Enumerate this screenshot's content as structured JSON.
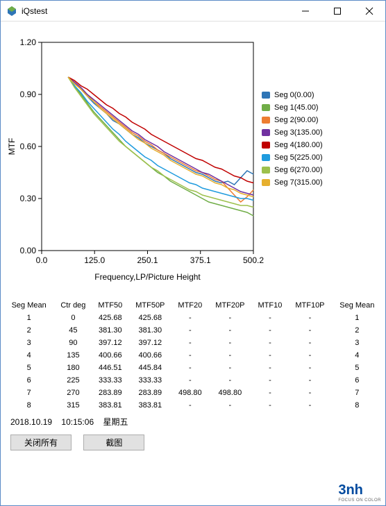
{
  "window": {
    "title": "iQstest"
  },
  "chart": {
    "type": "line",
    "xlabel": "Frequency,LP/Picture Height",
    "ylabel": "MTF",
    "xlim": [
      0,
      500.2
    ],
    "ylim": [
      0,
      1.2
    ],
    "xticks": [
      {
        "v": 0,
        "l": "0.0"
      },
      {
        "v": 125,
        "l": "125.0"
      },
      {
        "v": 250.1,
        "l": "250.1"
      },
      {
        "v": 375.1,
        "l": "375.1"
      },
      {
        "v": 500.2,
        "l": "500.2"
      }
    ],
    "yticks": [
      {
        "v": 0,
        "l": "0.00"
      },
      {
        "v": 0.3,
        "l": "0.30"
      },
      {
        "v": 0.6,
        "l": "0.60"
      },
      {
        "v": 0.9,
        "l": "0.90"
      },
      {
        "v": 1.2,
        "l": "1.20"
      }
    ],
    "plot_bg": "#ffffff",
    "fig_bg": "#ffffff",
    "grid_color": "#d0d0d0",
    "axis_color": "#000000",
    "label_fontsize": 12,
    "tick_fontsize": 12,
    "line_width": 1.5,
    "legend_prefix": "Seg",
    "series": [
      {
        "name": "Seg 0(0.00)",
        "color": "#2e75b6",
        "y": [
          1.0,
          0.97,
          0.93,
          0.89,
          0.85,
          0.82,
          0.79,
          0.75,
          0.73,
          0.7,
          0.67,
          0.65,
          0.62,
          0.6,
          0.58,
          0.56,
          0.53,
          0.51,
          0.49,
          0.47,
          0.45,
          0.44,
          0.42,
          0.4,
          0.39,
          0.4,
          0.38,
          0.42,
          0.46,
          0.44
        ]
      },
      {
        "name": "Seg 1(45.00)",
        "color": "#70ad47",
        "y": [
          1.0,
          0.95,
          0.9,
          0.85,
          0.8,
          0.76,
          0.72,
          0.68,
          0.64,
          0.6,
          0.57,
          0.54,
          0.51,
          0.48,
          0.45,
          0.43,
          0.4,
          0.38,
          0.36,
          0.34,
          0.32,
          0.3,
          0.28,
          0.27,
          0.26,
          0.25,
          0.24,
          0.23,
          0.22,
          0.2
        ]
      },
      {
        "name": "Seg 2(90.00)",
        "color": "#ed7d31",
        "y": [
          1.0,
          0.97,
          0.93,
          0.9,
          0.86,
          0.83,
          0.8,
          0.77,
          0.74,
          0.71,
          0.68,
          0.66,
          0.63,
          0.61,
          0.58,
          0.56,
          0.54,
          0.52,
          0.5,
          0.48,
          0.46,
          0.45,
          0.43,
          0.41,
          0.4,
          0.36,
          0.32,
          0.28,
          0.31,
          0.35
        ]
      },
      {
        "name": "Seg 3(135.00)",
        "color": "#7030a0",
        "y": [
          1.0,
          0.97,
          0.94,
          0.9,
          0.87,
          0.84,
          0.81,
          0.78,
          0.75,
          0.72,
          0.69,
          0.67,
          0.64,
          0.62,
          0.6,
          0.57,
          0.55,
          0.53,
          0.51,
          0.49,
          0.47,
          0.45,
          0.44,
          0.42,
          0.4,
          0.38,
          0.36,
          0.34,
          0.33,
          0.32
        ]
      },
      {
        "name": "Seg 4(180.00)",
        "color": "#c00000",
        "y": [
          1.0,
          0.98,
          0.95,
          0.93,
          0.9,
          0.87,
          0.84,
          0.82,
          0.79,
          0.77,
          0.74,
          0.72,
          0.7,
          0.67,
          0.65,
          0.63,
          0.61,
          0.59,
          0.57,
          0.55,
          0.53,
          0.52,
          0.5,
          0.48,
          0.47,
          0.45,
          0.43,
          0.42,
          0.4,
          0.39
        ]
      },
      {
        "name": "Seg 5(225.00)",
        "color": "#1f9bde",
        "y": [
          1.0,
          0.95,
          0.91,
          0.86,
          0.82,
          0.78,
          0.74,
          0.7,
          0.67,
          0.63,
          0.6,
          0.57,
          0.54,
          0.52,
          0.49,
          0.47,
          0.45,
          0.43,
          0.41,
          0.39,
          0.38,
          0.36,
          0.35,
          0.34,
          0.33,
          0.32,
          0.31,
          0.3,
          0.3,
          0.29
        ]
      },
      {
        "name": "Seg 6(270.00)",
        "color": "#9dc04c",
        "y": [
          1.0,
          0.94,
          0.89,
          0.84,
          0.79,
          0.75,
          0.71,
          0.67,
          0.63,
          0.6,
          0.57,
          0.54,
          0.51,
          0.48,
          0.46,
          0.43,
          0.41,
          0.39,
          0.37,
          0.35,
          0.34,
          0.32,
          0.31,
          0.3,
          0.29,
          0.28,
          0.27,
          0.26,
          0.26,
          0.25
        ]
      },
      {
        "name": "Seg 7(315.00)",
        "color": "#e6af2e",
        "y": [
          1.0,
          0.96,
          0.93,
          0.89,
          0.86,
          0.82,
          0.79,
          0.76,
          0.73,
          0.7,
          0.67,
          0.64,
          0.62,
          0.59,
          0.57,
          0.55,
          0.52,
          0.5,
          0.48,
          0.46,
          0.44,
          0.43,
          0.41,
          0.39,
          0.38,
          0.36,
          0.35,
          0.33,
          0.32,
          0.31
        ]
      }
    ],
    "x_start": 62.5,
    "x_step": 15.1
  },
  "table": {
    "columns": [
      "Seg Mean",
      "Ctr deg",
      "MTF50",
      "MTF50P",
      "MTF20",
      "MTF20P",
      "MTF10",
      "MTF10P",
      "Seg Mean"
    ],
    "rows": [
      [
        "1",
        "0",
        "425.68",
        "425.68",
        "-",
        "-",
        "-",
        "-",
        "1"
      ],
      [
        "2",
        "45",
        "381.30",
        "381.30",
        "-",
        "-",
        "-",
        "-",
        "2"
      ],
      [
        "3",
        "90",
        "397.12",
        "397.12",
        "-",
        "-",
        "-",
        "-",
        "3"
      ],
      [
        "4",
        "135",
        "400.66",
        "400.66",
        "-",
        "-",
        "-",
        "-",
        "4"
      ],
      [
        "5",
        "180",
        "446.51",
        "445.84",
        "-",
        "-",
        "-",
        "-",
        "5"
      ],
      [
        "6",
        "225",
        "333.33",
        "333.33",
        "-",
        "-",
        "-",
        "-",
        "6"
      ],
      [
        "7",
        "270",
        "283.89",
        "283.89",
        "498.80",
        "498.80",
        "-",
        "-",
        "7"
      ],
      [
        "8",
        "315",
        "383.81",
        "383.81",
        "-",
        "-",
        "-",
        "-",
        "8"
      ]
    ]
  },
  "footer": {
    "date": "2018.10.19",
    "time": "10:15:06",
    "weekday": "星期五"
  },
  "buttons": {
    "close_all": "关闭所有",
    "screenshot": "截图"
  },
  "logo": {
    "main": "3nh",
    "sub": "FOCUS ON COLOR"
  }
}
